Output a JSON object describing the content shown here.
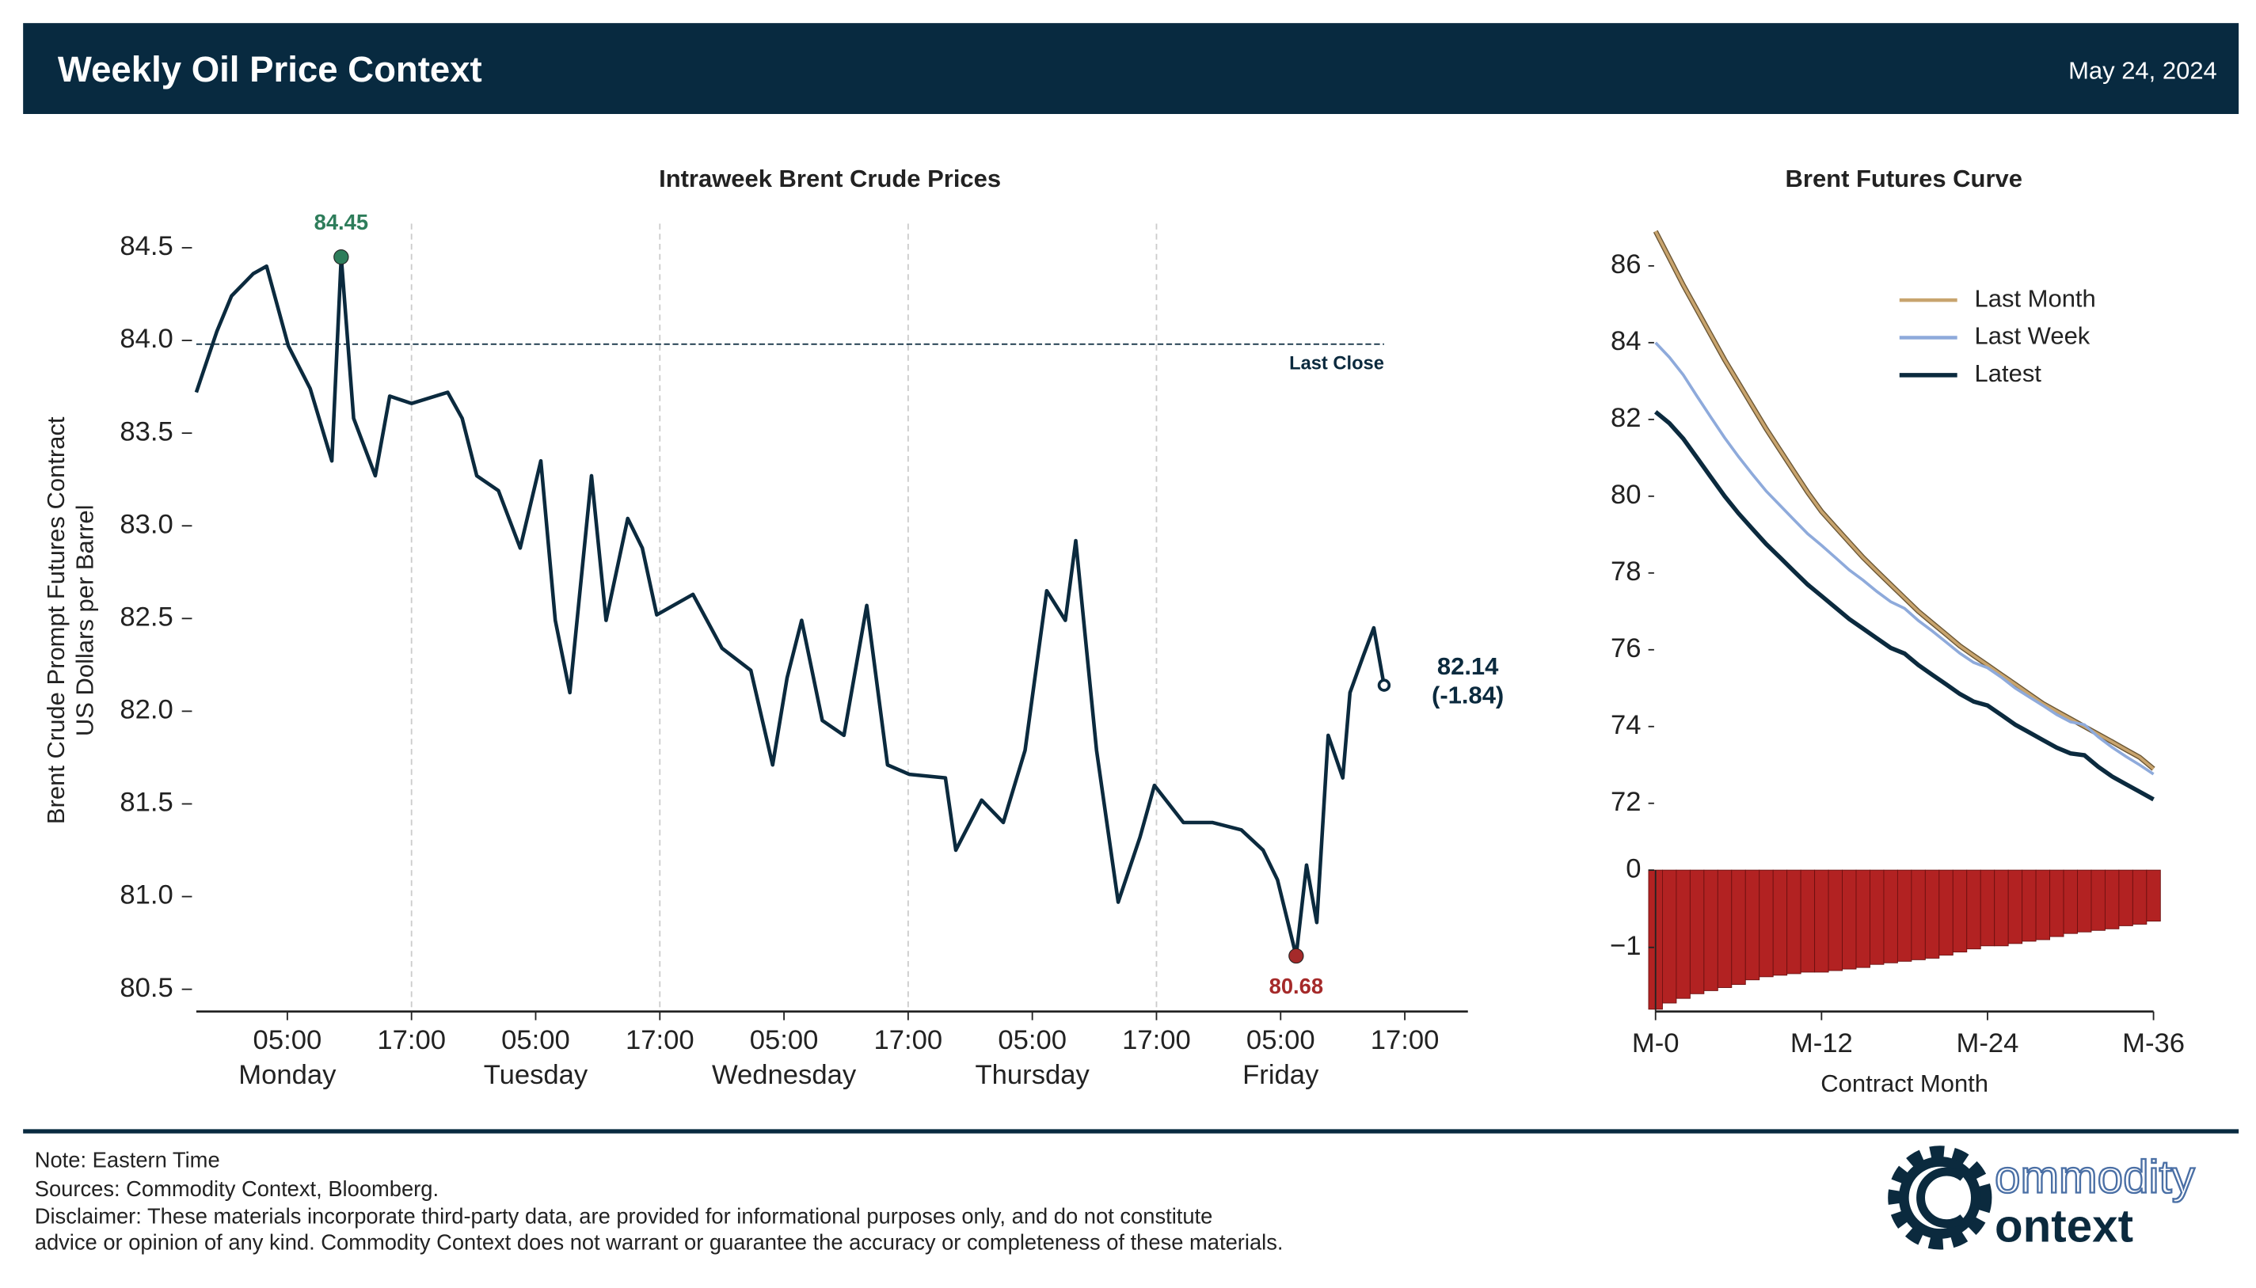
{
  "header": {
    "title": "Weekly Oil Price Context",
    "date": "May 24, 2024"
  },
  "chart_data": [
    {
      "type": "line",
      "title": "Intraweek Brent Crude Prices",
      "y_label": [
        "Brent Crude Prompt Futures Contract",
        "US Dollars per Barrel"
      ],
      "x": [
        -3.8,
        -1.8,
        -0.4,
        1.7,
        3.0,
        5.1,
        7.2,
        9.3,
        10.2,
        11.4,
        13.5,
        14.9,
        17,
        20.5,
        21.9,
        23.3,
        25.4,
        27.5,
        29.5,
        30.9,
        32.3,
        34.4,
        35.8,
        37.9,
        39.3,
        40.7,
        44.2,
        47,
        49.8,
        51.9,
        53.3,
        54.7,
        56.7,
        58.8,
        61,
        63,
        65.1,
        68.6,
        69.6,
        72.1,
        74.2,
        76.3,
        78.4,
        80.2,
        81.2,
        83.2,
        85.3,
        87.4,
        88.8,
        91.6,
        94.4,
        97.2,
        99.3,
        100.7,
        102.5,
        103.5,
        104.5,
        105.6,
        107,
        107.7,
        109,
        110,
        111
      ],
      "values": [
        83.72,
        84.05,
        84.24,
        84.36,
        84.4,
        83.97,
        83.74,
        83.35,
        84.45,
        83.58,
        83.27,
        83.7,
        83.66,
        83.72,
        83.58,
        83.27,
        83.19,
        82.88,
        83.35,
        82.49,
        82.1,
        83.27,
        82.49,
        83.04,
        82.88,
        82.52,
        82.63,
        82.34,
        82.22,
        81.71,
        82.18,
        82.49,
        81.95,
        81.87,
        82.57,
        81.71,
        81.66,
        81.64,
        81.25,
        81.52,
        81.4,
        81.79,
        82.65,
        82.49,
        82.92,
        81.79,
        80.97,
        81.32,
        81.6,
        81.4,
        81.4,
        81.36,
        81.25,
        81.09,
        80.68,
        81.17,
        80.86,
        81.87,
        81.64,
        82.1,
        82.3,
        82.45,
        82.14
      ],
      "color": "#0b2a3e",
      "high_color": "#2e7d5b",
      "low_color": "#a52a2a",
      "change_label": "(-1.84)",
      "reference": {
        "value": 83.98,
        "label": "Last Close"
      },
      "xlim": [
        -3.8,
        119.1
      ],
      "ylim": [
        80.38,
        84.63
      ],
      "yticks": [
        {
          "value": 80.5,
          "label": "80.5"
        },
        {
          "value": 81.0,
          "label": "81.0"
        },
        {
          "value": 81.5,
          "label": "81.5"
        },
        {
          "value": 82.0,
          "label": "82.0"
        },
        {
          "value": 82.5,
          "label": "82.5"
        },
        {
          "value": 83.0,
          "label": "83.0"
        },
        {
          "value": 83.5,
          "label": "83.5"
        },
        {
          "value": 84.0,
          "label": "84.0"
        },
        {
          "value": 84.5,
          "label": "84.5"
        }
      ],
      "xticks": [
        {
          "value": 5,
          "label": "05:00"
        },
        {
          "value": 17,
          "label": "17:00",
          "grid": true
        },
        {
          "value": 29,
          "label": "05:00"
        },
        {
          "value": 41,
          "label": "17:00",
          "grid": true
        },
        {
          "value": 53,
          "label": "05:00"
        },
        {
          "value": 65,
          "label": "17:00",
          "grid": true
        },
        {
          "value": 77,
          "label": "05:00"
        },
        {
          "value": 89,
          "label": "17:00",
          "grid": true
        },
        {
          "value": 101,
          "label": "05:00"
        },
        {
          "value": 113,
          "label": "17:00"
        }
      ],
      "day_labels": [
        {
          "value": 5,
          "label": "Monday"
        },
        {
          "value": 29,
          "label": "Tuesday"
        },
        {
          "value": 53,
          "label": "Wednesday"
        },
        {
          "value": 77,
          "label": "Thursday"
        },
        {
          "value": 101,
          "label": "Friday"
        }
      ]
    },
    {
      "type": "line",
      "title": "Brent Futures Curve",
      "x": [
        0,
        1,
        2,
        3,
        4,
        5,
        6,
        7,
        8,
        9,
        10,
        11,
        12,
        13,
        14,
        15,
        16,
        17,
        18,
        19,
        20,
        21,
        22,
        23,
        24,
        25,
        26,
        27,
        28,
        29,
        30,
        31,
        32,
        33,
        34,
        35,
        36
      ],
      "series": [
        {
          "name": "Last Month",
          "color": "#c8a46e",
          "values": [
            86.9,
            86.2,
            85.5,
            84.85,
            84.2,
            83.55,
            82.95,
            82.35,
            81.75,
            81.2,
            80.65,
            80.1,
            79.6,
            79.2,
            78.8,
            78.4,
            78.05,
            77.7,
            77.35,
            77.0,
            76.7,
            76.4,
            76.1,
            75.85,
            75.6,
            75.35,
            75.1,
            74.85,
            74.6,
            74.4,
            74.2,
            74.0,
            73.8,
            73.6,
            73.4,
            73.2,
            72.9
          ]
        },
        {
          "name": "Last Week",
          "color": "#8eaadb",
          "values": [
            84.0,
            83.62,
            83.16,
            82.6,
            82.06,
            81.52,
            81.03,
            80.57,
            80.13,
            79.76,
            79.39,
            79.02,
            78.72,
            78.4,
            78.08,
            77.81,
            77.52,
            77.25,
            77.08,
            76.76,
            76.49,
            76.2,
            75.91,
            75.67,
            75.53,
            75.28,
            75.0,
            74.77,
            74.55,
            74.31,
            74.12,
            74.05,
            73.73,
            73.46,
            73.22,
            73.0,
            72.76
          ]
        },
        {
          "name": "Latest",
          "color": "#0b2a3e",
          "values": [
            82.2,
            81.9,
            81.5,
            81.0,
            80.5,
            80.0,
            79.55,
            79.15,
            78.75,
            78.4,
            78.05,
            77.7,
            77.4,
            77.1,
            76.8,
            76.55,
            76.3,
            76.05,
            75.9,
            75.6,
            75.35,
            75.1,
            74.85,
            74.65,
            74.55,
            74.3,
            74.05,
            73.85,
            73.65,
            73.45,
            73.3,
            73.25,
            72.95,
            72.7,
            72.5,
            72.3,
            72.1
          ]
        }
      ],
      "xlim": [
        0,
        36
      ],
      "ylim": [
        71.5,
        87.1
      ],
      "yticks": [
        72,
        74,
        76,
        78,
        80,
        82,
        84,
        86
      ],
      "legend": "upper right"
    },
    {
      "type": "bar",
      "x": [
        0,
        1,
        2,
        3,
        4,
        5,
        6,
        7,
        8,
        9,
        10,
        11,
        12,
        13,
        14,
        15,
        16,
        17,
        18,
        19,
        20,
        21,
        22,
        23,
        24,
        25,
        26,
        27,
        28,
        29,
        30,
        31,
        32,
        33,
        34,
        35,
        36
      ],
      "values": [
        -1.8,
        -1.72,
        -1.66,
        -1.6,
        -1.56,
        -1.52,
        -1.48,
        -1.42,
        -1.38,
        -1.36,
        -1.34,
        -1.32,
        -1.32,
        -1.3,
        -1.28,
        -1.26,
        -1.22,
        -1.2,
        -1.18,
        -1.16,
        -1.14,
        -1.1,
        -1.06,
        -1.02,
        -0.98,
        -0.98,
        -0.95,
        -0.92,
        -0.9,
        -0.86,
        -0.82,
        -0.8,
        -0.78,
        -0.76,
        -0.72,
        -0.7,
        -0.66
      ],
      "color": "#b22222",
      "x_label": "Contract Month",
      "xlim": [
        0,
        36
      ],
      "ylim": [
        -1.83,
        0
      ],
      "yticks": [
        {
          "value": -1,
          "label": "−1"
        },
        0
      ],
      "xticks": [
        {
          "value": 0,
          "label": "M-0"
        },
        {
          "value": 12,
          "label": "M-12"
        },
        {
          "value": 24,
          "label": "M-24"
        },
        {
          "value": 36,
          "label": "M-36"
        }
      ]
    }
  ],
  "footer": {
    "notes": [
      "Note: Eastern Time",
      "Sources: Commodity Context, Bloomberg.",
      "Disclaimer: These materials incorporate third-party data, are provided for informational purposes only, and do not constitute",
      "advice or opinion of any kind. Commodity Context does not warrant or guarantee the accuracy or completeness of these materials."
    ],
    "logo": {
      "line1": "ommodity",
      "line2": "ontext"
    }
  }
}
